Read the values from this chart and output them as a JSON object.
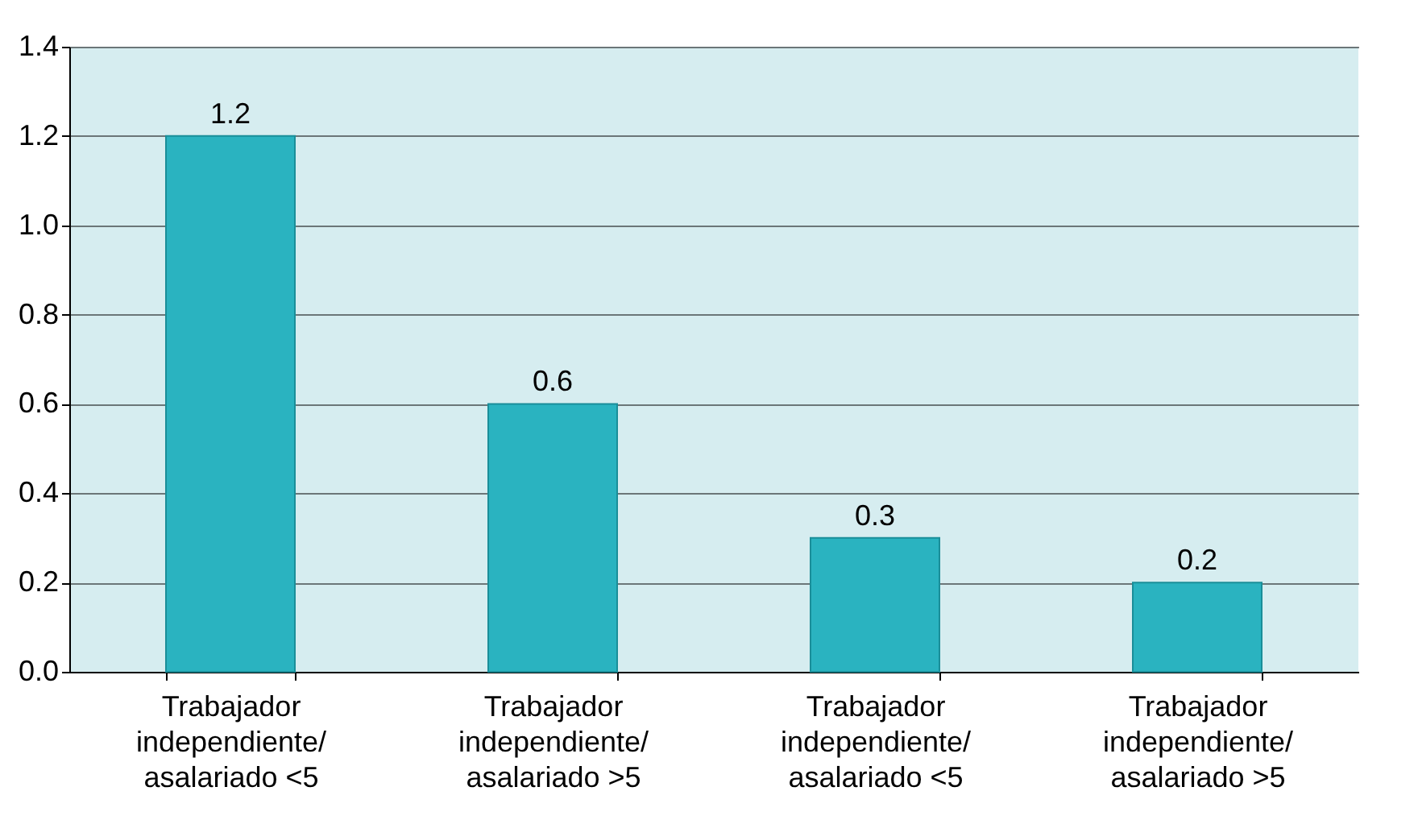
{
  "chart_data": {
    "type": "bar",
    "categories": [
      "Trabajador independiente/ asalariado <5",
      "Trabajador independiente/ asalariado >5",
      "Trabajador independiente/ asalariado <5",
      "Trabajador independiente/ asalariado >5"
    ],
    "values": [
      1.2,
      0.6,
      0.3,
      0.2
    ],
    "color": "#2ab3c0",
    "ylim": [
      0,
      1.4
    ],
    "yticks": [
      {
        "value": 0,
        "label": "0.0"
      },
      {
        "value": 0.2,
        "label": "0.2"
      },
      {
        "value": 0.4,
        "label": "0.4"
      },
      {
        "value": 0.6,
        "label": "0.6"
      },
      {
        "value": 0.8,
        "label": "0.8"
      },
      {
        "value": 1.0,
        "label": "1.0"
      },
      {
        "value": 1.2,
        "label": "1.2"
      },
      {
        "value": 1.4,
        "label": "1.4"
      }
    ],
    "grid": "y",
    "data_labels": true
  }
}
